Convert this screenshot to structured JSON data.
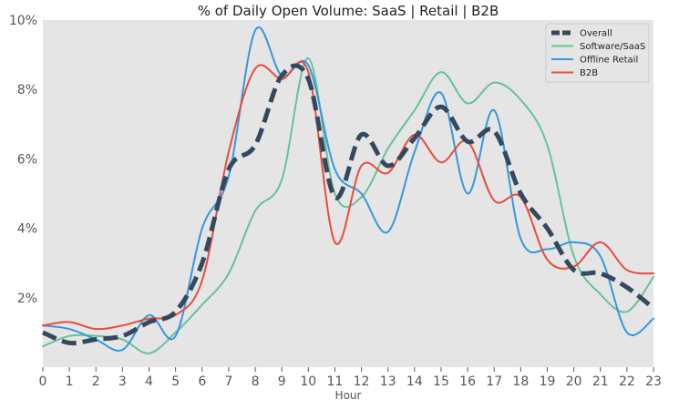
{
  "chart_data": {
    "type": "line",
    "title": "% of Daily Open Volume: SaaS | Retail | B2B",
    "xlabel": "Hour",
    "ylabel": "",
    "xlim": [
      0,
      23
    ],
    "ylim": [
      0,
      10
    ],
    "x_ticks": [
      "0",
      "1",
      "2",
      "3",
      "4",
      "5",
      "6",
      "7",
      "8",
      "9",
      "10",
      "11",
      "12",
      "13",
      "14",
      "15",
      "16",
      "17",
      "18",
      "19",
      "20",
      "21",
      "22",
      "23"
    ],
    "y_ticks": [
      {
        "value": 2,
        "label": "2%"
      },
      {
        "value": 4,
        "label": "4%"
      },
      {
        "value": 6,
        "label": "6%"
      },
      {
        "value": 8,
        "label": "8%"
      },
      {
        "value": 10,
        "label": "10%"
      }
    ],
    "grid": false,
    "legend": "top-right",
    "background": "#e5e5e5",
    "x": [
      0,
      1,
      2,
      3,
      4,
      5,
      6,
      7,
      8,
      9,
      10,
      11,
      12,
      13,
      14,
      15,
      16,
      17,
      18,
      19,
      20,
      21,
      22,
      23
    ],
    "series": [
      {
        "name": "Overall",
        "color": "#34495e",
        "dashed": true,
        "values": [
          1.0,
          0.7,
          0.8,
          0.9,
          1.3,
          1.6,
          3.0,
          5.7,
          6.4,
          8.4,
          8.3,
          4.9,
          6.7,
          5.8,
          6.6,
          7.5,
          6.5,
          6.8,
          5.0,
          4.0,
          2.8,
          2.7,
          2.3,
          1.7
        ]
      },
      {
        "name": "Software/SaaS",
        "color": "#66c29a",
        "dashed": false,
        "values": [
          0.6,
          0.9,
          0.9,
          0.8,
          0.4,
          1.0,
          1.8,
          2.7,
          4.5,
          5.4,
          8.9,
          5.0,
          4.9,
          6.3,
          7.4,
          8.5,
          7.6,
          8.2,
          7.7,
          6.4,
          3.2,
          2.1,
          1.6,
          2.6
        ]
      },
      {
        "name": "Offline Retail",
        "color": "#3498db",
        "dashed": false,
        "values": [
          1.2,
          1.1,
          0.8,
          0.5,
          1.5,
          0.9,
          4.0,
          5.5,
          9.7,
          8.4,
          8.7,
          5.7,
          5.0,
          3.9,
          6.2,
          7.9,
          5.0,
          7.4,
          3.7,
          3.4,
          3.6,
          3.2,
          1.0,
          1.4
        ]
      },
      {
        "name": "B2B",
        "color": "#e74c3c",
        "dashed": false,
        "values": [
          1.2,
          1.3,
          1.1,
          1.2,
          1.4,
          1.5,
          2.5,
          6.2,
          8.6,
          8.3,
          8.5,
          3.6,
          5.8,
          5.6,
          6.7,
          5.9,
          6.5,
          4.8,
          4.9,
          3.1,
          2.9,
          3.6,
          2.8,
          2.7
        ]
      }
    ]
  }
}
